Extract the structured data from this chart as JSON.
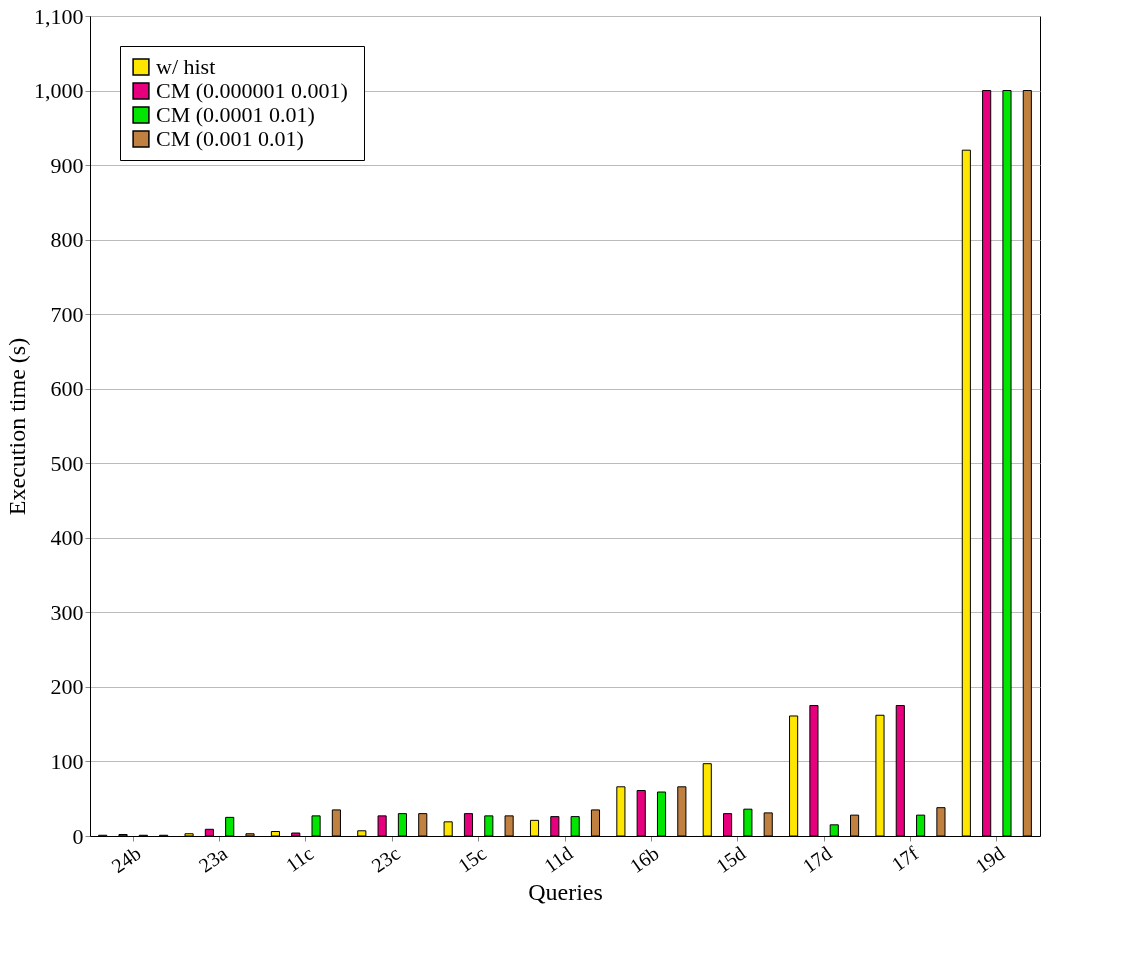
{
  "chart_data": {
    "type": "bar",
    "xlabel": "Queries",
    "ylabel": "Execution time (s)",
    "categories": [
      "24b",
      "23a",
      "11c",
      "23c",
      "15c",
      "11d",
      "16b",
      "15d",
      "17d",
      "17f",
      "19d"
    ],
    "series": [
      {
        "name": "w/ hist",
        "color": "#ffe600",
        "values": [
          1,
          3,
          6,
          7,
          19,
          21,
          66,
          97,
          161,
          162,
          920
        ]
      },
      {
        "name": "CM (0.000001  0.001)",
        "color": "#e6007e",
        "values": [
          2,
          9,
          4,
          27,
          30,
          26,
          61,
          30,
          175,
          175,
          1000
        ]
      },
      {
        "name": "CM (0.0001  0.01)",
        "color": "#00e600",
        "values": [
          1,
          25,
          27,
          30,
          27,
          26,
          59,
          36,
          15,
          28,
          1000
        ]
      },
      {
        "name": "CM (0.001  0.01)",
        "color": "#c08040",
        "values": [
          1,
          3,
          35,
          30,
          27,
          35,
          66,
          31,
          28,
          38,
          1000
        ]
      }
    ],
    "ylim": [
      0,
      1100
    ],
    "yticks": [
      0,
      100,
      200,
      300,
      400,
      500,
      600,
      700,
      800,
      900,
      {
        "value": 1000,
        "label": "1,000"
      },
      {
        "value": 1100,
        "label": "1,100"
      }
    ],
    "grid": "y",
    "legend": "top left"
  }
}
